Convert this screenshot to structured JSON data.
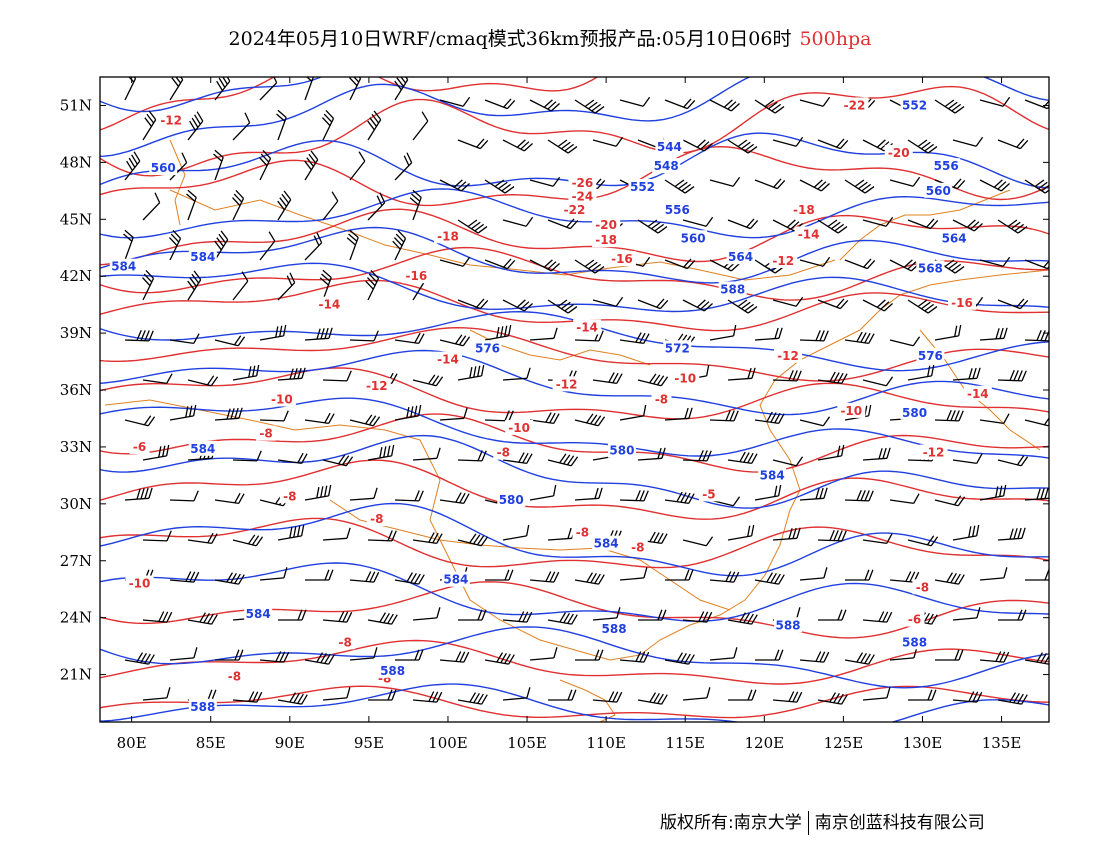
{
  "title": {
    "text": "2024年05月10日WRF/cmaq模式36km预报产品:05月10日06时",
    "level": "500hpa"
  },
  "colors": {
    "geopotential": "#2040e0",
    "temperature": "#e03030",
    "boundary": "#e08020",
    "wind": "#000000"
  },
  "map": {
    "lon_range": [
      78,
      138
    ],
    "lat_range": [
      18.5,
      52.5
    ],
    "lon_ticks": [
      80,
      85,
      90,
      95,
      100,
      105,
      110,
      115,
      120,
      125,
      130,
      135
    ],
    "lat_ticks": [
      21,
      24,
      27,
      30,
      33,
      36,
      39,
      42,
      45,
      48,
      51
    ],
    "lon_labels": [
      "80E",
      "85E",
      "90E",
      "95E",
      "100E",
      "105E",
      "110E",
      "115E",
      "120E",
      "125E",
      "130E",
      "135E"
    ],
    "lat_labels": [
      "21N",
      "24N",
      "27N",
      "30N",
      "33N",
      "36N",
      "39N",
      "42N",
      "45N",
      "48N",
      "51N"
    ]
  },
  "geopotential_labels": [
    {
      "text": "544",
      "lon": 114.0,
      "lat": 48.8
    },
    {
      "text": "548",
      "lon": 113.8,
      "lat": 47.8
    },
    {
      "text": "552",
      "lon": 112.3,
      "lat": 46.7
    },
    {
      "text": "552",
      "lon": 129.5,
      "lat": 51.0
    },
    {
      "text": "556",
      "lon": 114.5,
      "lat": 45.5
    },
    {
      "text": "556",
      "lon": 131.5,
      "lat": 47.8
    },
    {
      "text": "560",
      "lon": 82.0,
      "lat": 47.7
    },
    {
      "text": "560",
      "lon": 115.5,
      "lat": 44.0
    },
    {
      "text": "560",
      "lon": 131.0,
      "lat": 46.5
    },
    {
      "text": "564",
      "lon": 118.5,
      "lat": 43.0
    },
    {
      "text": "564",
      "lon": 132.0,
      "lat": 44.0
    },
    {
      "text": "568",
      "lon": 130.5,
      "lat": 42.4
    },
    {
      "text": "572",
      "lon": 114.5,
      "lat": 38.2
    },
    {
      "text": "576",
      "lon": 102.5,
      "lat": 38.2
    },
    {
      "text": "576",
      "lon": 130.5,
      "lat": 37.8
    },
    {
      "text": "580",
      "lon": 104.0,
      "lat": 30.2
    },
    {
      "text": "580",
      "lon": 111.0,
      "lat": 32.8
    },
    {
      "text": "580",
      "lon": 129.5,
      "lat": 34.8
    },
    {
      "text": "584",
      "lon": 79.5,
      "lat": 42.5
    },
    {
      "text": "584",
      "lon": 84.5,
      "lat": 43.0
    },
    {
      "text": "584",
      "lon": 84.5,
      "lat": 32.9
    },
    {
      "text": "584",
      "lon": 120.5,
      "lat": 31.5
    },
    {
      "text": "584",
      "lon": 100.5,
      "lat": 26.0
    },
    {
      "text": "584",
      "lon": 110.0,
      "lat": 27.9
    },
    {
      "text": "584",
      "lon": 88.0,
      "lat": 24.2
    },
    {
      "text": "588",
      "lon": 110.5,
      "lat": 23.4
    },
    {
      "text": "588",
      "lon": 96.5,
      "lat": 21.2
    },
    {
      "text": "588",
      "lon": 84.5,
      "lat": 19.3
    },
    {
      "text": "588",
      "lon": 118.0,
      "lat": 41.3
    },
    {
      "text": "588",
      "lon": 121.5,
      "lat": 23.6
    },
    {
      "text": "588",
      "lon": 129.5,
      "lat": 22.7
    }
  ],
  "temperature_labels": [
    {
      "text": "-12",
      "lon": 82.5,
      "lat": 50.2
    },
    {
      "text": "-22",
      "lon": 125.7,
      "lat": 51.0
    },
    {
      "text": "-20",
      "lon": 128.5,
      "lat": 48.5
    },
    {
      "text": "-26",
      "lon": 108.5,
      "lat": 46.9
    },
    {
      "text": "-24",
      "lon": 108.5,
      "lat": 46.2
    },
    {
      "text": "-22",
      "lon": 108.0,
      "lat": 45.5
    },
    {
      "text": "-20",
      "lon": 110.0,
      "lat": 44.7
    },
    {
      "text": "-18",
      "lon": 110.0,
      "lat": 43.9
    },
    {
      "text": "-18",
      "lon": 100.0,
      "lat": 44.1
    },
    {
      "text": "-18",
      "lon": 122.5,
      "lat": 45.5
    },
    {
      "text": "-16",
      "lon": 111.0,
      "lat": 42.9
    },
    {
      "text": "-16",
      "lon": 98.0,
      "lat": 42.0
    },
    {
      "text": "-16",
      "lon": 132.5,
      "lat": 40.6
    },
    {
      "text": "-14",
      "lon": 122.8,
      "lat": 44.2
    },
    {
      "text": "-14",
      "lon": 92.5,
      "lat": 40.5
    },
    {
      "text": "-14",
      "lon": 108.8,
      "lat": 39.3
    },
    {
      "text": "-14",
      "lon": 100.0,
      "lat": 37.6
    },
    {
      "text": "-14",
      "lon": 133.5,
      "lat": 35.8
    },
    {
      "text": "-12",
      "lon": 121.2,
      "lat": 42.8
    },
    {
      "text": "-12",
      "lon": 121.5,
      "lat": 37.8
    },
    {
      "text": "-12",
      "lon": 95.5,
      "lat": 36.2
    },
    {
      "text": "-12",
      "lon": 107.5,
      "lat": 36.3
    },
    {
      "text": "-12",
      "lon": 130.7,
      "lat": 32.7
    },
    {
      "text": "-10",
      "lon": 89.5,
      "lat": 35.5
    },
    {
      "text": "-10",
      "lon": 104.5,
      "lat": 34.0
    },
    {
      "text": "-10",
      "lon": 115.0,
      "lat": 36.6
    },
    {
      "text": "-10",
      "lon": 125.5,
      "lat": 34.9
    },
    {
      "text": "-10",
      "lon": 80.5,
      "lat": 25.8
    },
    {
      "text": "-8",
      "lon": 88.5,
      "lat": 33.7
    },
    {
      "text": "-8",
      "lon": 113.5,
      "lat": 35.5
    },
    {
      "text": "-8",
      "lon": 103.5,
      "lat": 32.7
    },
    {
      "text": "-8",
      "lon": 95.5,
      "lat": 29.2
    },
    {
      "text": "-8",
      "lon": 90.0,
      "lat": 30.4
    },
    {
      "text": "-8",
      "lon": 93.5,
      "lat": 22.7
    },
    {
      "text": "-8",
      "lon": 86.5,
      "lat": 20.9
    },
    {
      "text": "-8",
      "lon": 96.0,
      "lat": 20.8
    },
    {
      "text": "-8",
      "lon": 108.5,
      "lat": 28.5
    },
    {
      "text": "-8",
      "lon": 112.0,
      "lat": 27.7
    },
    {
      "text": "-8",
      "lon": 130.0,
      "lat": 25.6
    },
    {
      "text": "-6",
      "lon": 80.5,
      "lat": 33.0
    },
    {
      "text": "-6",
      "lon": 129.5,
      "lat": 23.9
    },
    {
      "text": "-5",
      "lon": 116.5,
      "lat": 30.5
    }
  ]
}
